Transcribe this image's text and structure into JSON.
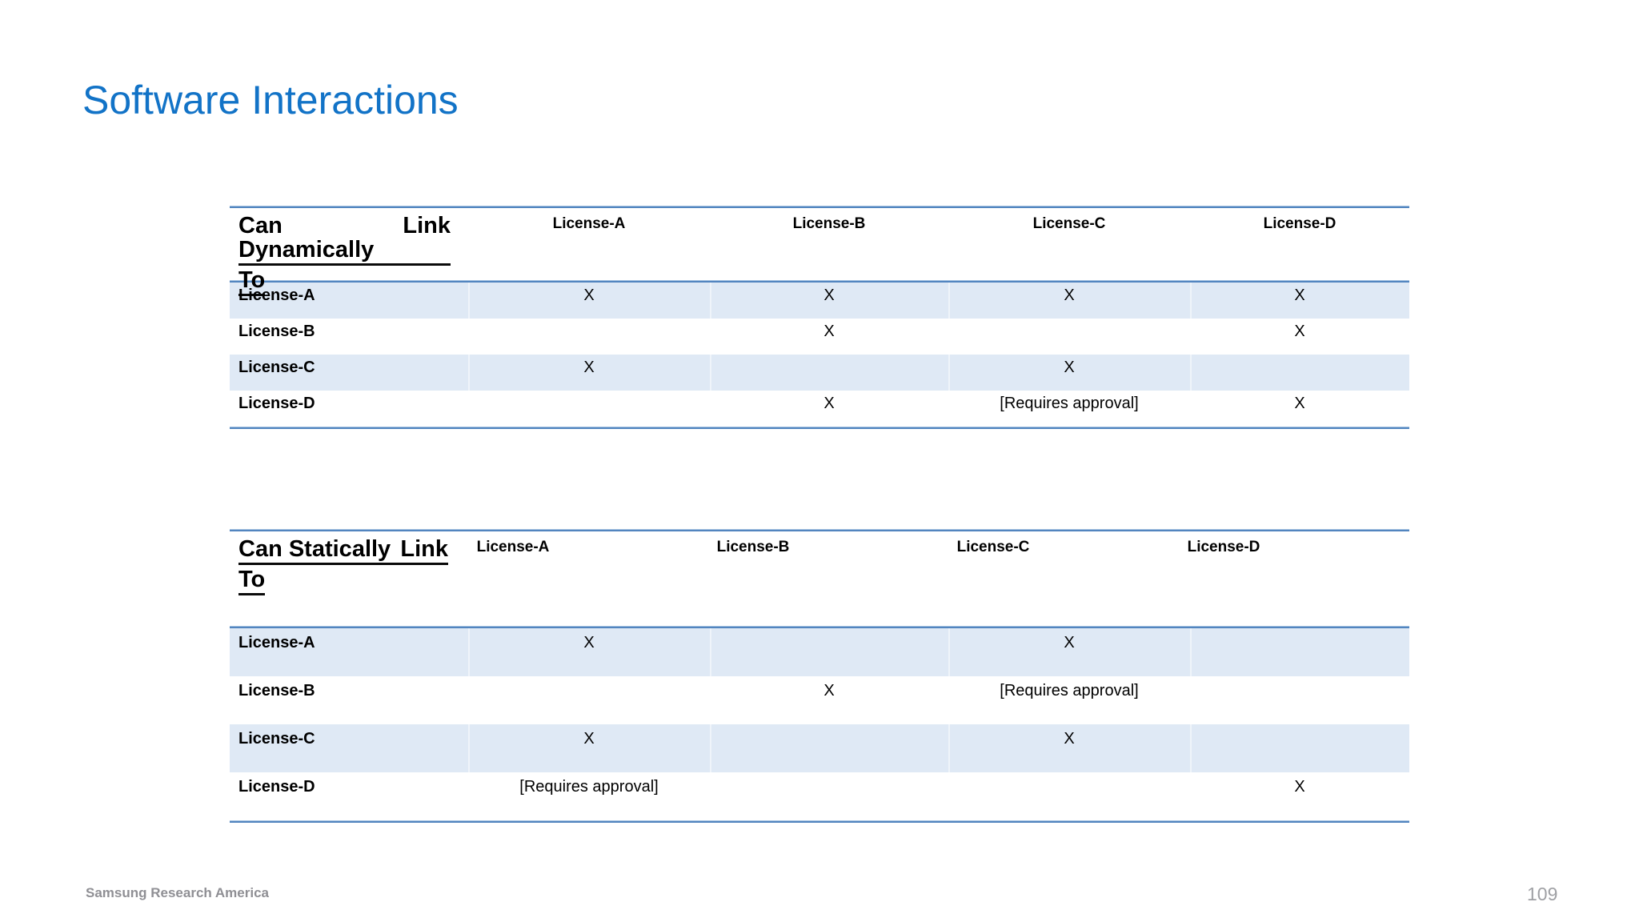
{
  "slide": {
    "title": "Software Interactions",
    "footer": "Samsung Research America",
    "page_number": "109"
  },
  "colors": {
    "title_blue": "#1273c7",
    "band_blue": "#dfe9f5",
    "table_border_blue": "#5285bf",
    "footer_gray": "#8f8f94"
  },
  "tables": [
    {
      "name": "Can Dynamically Link To",
      "corner": {
        "line1_left": "Can Dynamically",
        "line1_right": "Link",
        "line2": "To"
      },
      "columns": [
        "License-A",
        "License-B",
        "License-C",
        "License-D"
      ],
      "rows": [
        {
          "label": "License-A",
          "cells": [
            "X",
            "X",
            "X",
            "X"
          ]
        },
        {
          "label": "License-B",
          "cells": [
            "",
            "X",
            "",
            "X"
          ]
        },
        {
          "label": "License-C",
          "cells": [
            "X",
            "",
            "X",
            ""
          ]
        },
        {
          "label": "License-D",
          "cells": [
            "",
            "X",
            "[Requires approval]",
            "X"
          ]
        }
      ]
    },
    {
      "name": "Can Statically Link To",
      "corner": {
        "line1_left": "Can Statically",
        "line1_right": "Link",
        "line2": "To"
      },
      "columns": [
        "License-A",
        "License-B",
        "License-C",
        "License-D"
      ],
      "rows": [
        {
          "label": "License-A",
          "cells": [
            "X",
            "",
            "X",
            ""
          ]
        },
        {
          "label": "License-B",
          "cells": [
            "",
            "X",
            "[Requires approval]",
            ""
          ]
        },
        {
          "label": "License-C",
          "cells": [
            "X",
            "",
            "X",
            ""
          ]
        },
        {
          "label": "License-D",
          "cells": [
            "[Requires approval]",
            "",
            "",
            "X"
          ]
        }
      ]
    }
  ]
}
